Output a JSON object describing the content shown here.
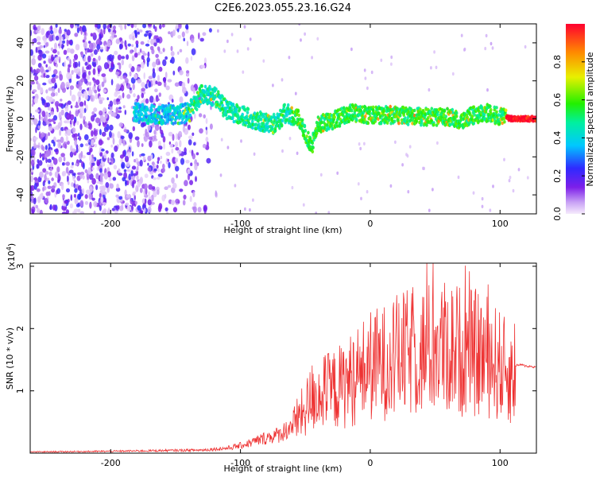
{
  "title": "C2E6.2023.055.23.16.G24",
  "chart_data": [
    {
      "type": "heatmap",
      "xlabel": "Height of straight line (km)",
      "ylabel": "Frequency (Hz)",
      "xlim": [
        -262,
        128
      ],
      "ylim": [
        -50,
        50
      ],
      "xticks": [
        -200,
        -100,
        0,
        100
      ],
      "yticks": [
        -40,
        -20,
        0,
        20,
        40
      ],
      "colorbar": {
        "label": "Normalized spectral amplitude",
        "range": [
          0,
          1
        ],
        "ticks": [
          "0.0",
          "0.2",
          "0.4",
          "0.6",
          "0.8"
        ],
        "tick_values": [
          0,
          0.2,
          0.4,
          0.6,
          0.8
        ]
      },
      "ridge": {
        "x": [
          -182,
          -160,
          -140,
          -130,
          -120,
          -110,
          -100,
          -85,
          -75,
          -65,
          -55,
          -50,
          -45,
          -40,
          -30,
          -15,
          0,
          20,
          40,
          60,
          70,
          80,
          90,
          100,
          110,
          128
        ],
        "y": [
          3,
          2,
          3,
          13,
          12,
          4,
          2,
          -1,
          -3,
          3,
          0,
          -8,
          -14,
          -3,
          -1,
          3,
          2,
          2,
          1,
          1,
          -1,
          2,
          3,
          1,
          0,
          0
        ]
      }
    },
    {
      "type": "line",
      "xlabel": "Height of straight line (km)",
      "ylabel": "SNR (10 * v/v)",
      "yexponent": "(x10",
      "yexponent_power": "4",
      "yexponent_close": ")",
      "xlim": [
        -262,
        128
      ],
      "ylim": [
        0,
        3.05
      ],
      "xticks": [
        -200,
        -100,
        0,
        100
      ],
      "yticks": [
        1,
        2,
        3
      ],
      "color": "#ee3333",
      "envelope": {
        "x": [
          -262,
          -200,
          -130,
          -110,
          -100,
          -90,
          -80,
          -70,
          -60,
          -50,
          -45,
          -40,
          -30,
          -20,
          -10,
          0,
          10,
          20,
          30,
          40,
          50,
          60,
          70,
          80,
          85,
          90,
          100,
          105,
          110,
          112,
          115,
          120,
          128
        ],
        "y": [
          0.02,
          0.03,
          0.05,
          0.08,
          0.12,
          0.18,
          0.25,
          0.3,
          0.45,
          0.7,
          0.9,
          0.95,
          1.0,
          1.1,
          1.25,
          1.4,
          1.45,
          1.55,
          1.6,
          1.65,
          1.7,
          1.7,
          1.65,
          1.6,
          1.6,
          1.55,
          1.4,
          1.3,
          1.25,
          1.4,
          1.42,
          1.4,
          1.38
        ]
      }
    }
  ]
}
